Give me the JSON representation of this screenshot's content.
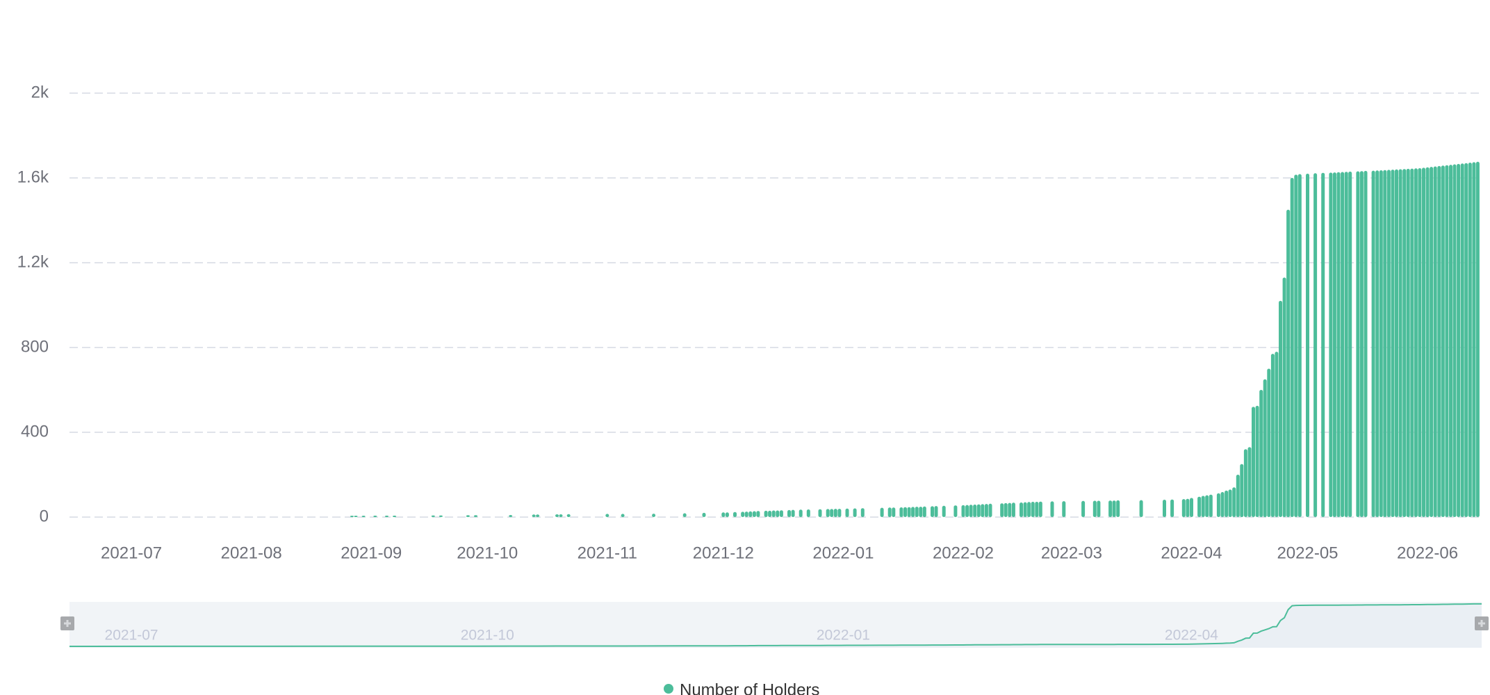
{
  "colors": {
    "series": "#4cbd9a",
    "grid": "#e0e3ea",
    "axis_text": "#6e7079",
    "slider_bg": "#f6f7f9",
    "slider_selection": "#eef2f5",
    "slider_text": "#c3c8d8",
    "handle": "#a7a9ac"
  },
  "chart_data": {
    "type": "bar",
    "title": "",
    "xlabel": "",
    "ylabel": "",
    "ylim": [
      0,
      2000
    ],
    "grid": true,
    "legend_position": "bottom-center",
    "y_ticks": [
      {
        "value": 0,
        "label": "0"
      },
      {
        "value": 400,
        "label": "400"
      },
      {
        "value": 800,
        "label": "800"
      },
      {
        "value": 1200,
        "label": "1.2k"
      },
      {
        "value": 1600,
        "label": "1.6k"
      },
      {
        "value": 2000,
        "label": "2k"
      }
    ],
    "x_range": [
      "2021-06-15",
      "2022-06-15"
    ],
    "x_ticks": [
      {
        "date": "2021-07-01",
        "label": "2021-07"
      },
      {
        "date": "2021-08-01",
        "label": "2021-08"
      },
      {
        "date": "2021-09-01",
        "label": "2021-09"
      },
      {
        "date": "2021-10-01",
        "label": "2021-10"
      },
      {
        "date": "2021-11-01",
        "label": "2021-11"
      },
      {
        "date": "2021-12-01",
        "label": "2021-12"
      },
      {
        "date": "2022-01-01",
        "label": "2022-01"
      },
      {
        "date": "2022-02-01",
        "label": "2022-02"
      },
      {
        "date": "2022-03-01",
        "label": "2022-03"
      },
      {
        "date": "2022-04-01",
        "label": "2022-04"
      },
      {
        "date": "2022-05-01",
        "label": "2022-05"
      },
      {
        "date": "2022-06-01",
        "label": "2022-06"
      }
    ],
    "slider_labels": [
      {
        "date": "2021-07-01",
        "label": "2021-07"
      },
      {
        "date": "2021-10-01",
        "label": "2021-10"
      },
      {
        "date": "2022-01-01",
        "label": "2022-01"
      },
      {
        "date": "2022-04-01",
        "label": "2022-04"
      }
    ],
    "series": [
      {
        "name": "Number of Holders",
        "points": [
          [
            "2021-08-27",
            5
          ],
          [
            "2021-08-28",
            6
          ],
          [
            "2021-08-30",
            6
          ],
          [
            "2021-09-02",
            7
          ],
          [
            "2021-09-05",
            7
          ],
          [
            "2021-09-07",
            7
          ],
          [
            "2021-09-17",
            8
          ],
          [
            "2021-09-19",
            8
          ],
          [
            "2021-09-26",
            9
          ],
          [
            "2021-09-28",
            9
          ],
          [
            "2021-10-07",
            10
          ],
          [
            "2021-10-13",
            12
          ],
          [
            "2021-10-14",
            12
          ],
          [
            "2021-10-19",
            13
          ],
          [
            "2021-10-20",
            13
          ],
          [
            "2021-10-22",
            14
          ],
          [
            "2021-11-01",
            15
          ],
          [
            "2021-11-05",
            15
          ],
          [
            "2021-11-13",
            16
          ],
          [
            "2021-11-21",
            18
          ],
          [
            "2021-11-26",
            20
          ],
          [
            "2021-12-01",
            22
          ],
          [
            "2021-12-02",
            22
          ],
          [
            "2021-12-04",
            24
          ],
          [
            "2021-12-06",
            25
          ],
          [
            "2021-12-07",
            26
          ],
          [
            "2021-12-08",
            27
          ],
          [
            "2021-12-09",
            28
          ],
          [
            "2021-12-10",
            29
          ],
          [
            "2021-12-12",
            30
          ],
          [
            "2021-12-13",
            30
          ],
          [
            "2021-12-14",
            31
          ],
          [
            "2021-12-15",
            31
          ],
          [
            "2021-12-16",
            32
          ],
          [
            "2021-12-18",
            33
          ],
          [
            "2021-12-19",
            34
          ],
          [
            "2021-12-21",
            35
          ],
          [
            "2021-12-23",
            36
          ],
          [
            "2021-12-26",
            37
          ],
          [
            "2021-12-28",
            38
          ],
          [
            "2021-12-29",
            38
          ],
          [
            "2021-12-30",
            39
          ],
          [
            "2021-12-31",
            39
          ],
          [
            "2022-01-02",
            40
          ],
          [
            "2022-01-04",
            41
          ],
          [
            "2022-01-06",
            42
          ],
          [
            "2022-01-11",
            44
          ],
          [
            "2022-01-13",
            45
          ],
          [
            "2022-01-14",
            45
          ],
          [
            "2022-01-16",
            46
          ],
          [
            "2022-01-17",
            47
          ],
          [
            "2022-01-18",
            47
          ],
          [
            "2022-01-19",
            48
          ],
          [
            "2022-01-20",
            49
          ],
          [
            "2022-01-21",
            49
          ],
          [
            "2022-01-22",
            50
          ],
          [
            "2022-01-24",
            51
          ],
          [
            "2022-01-25",
            52
          ],
          [
            "2022-01-27",
            53
          ],
          [
            "2022-01-30",
            55
          ],
          [
            "2022-02-01",
            56
          ],
          [
            "2022-02-02",
            57
          ],
          [
            "2022-02-03",
            58
          ],
          [
            "2022-02-04",
            59
          ],
          [
            "2022-02-05",
            60
          ],
          [
            "2022-02-06",
            61
          ],
          [
            "2022-02-07",
            62
          ],
          [
            "2022-02-08",
            63
          ],
          [
            "2022-02-11",
            65
          ],
          [
            "2022-02-12",
            66
          ],
          [
            "2022-02-13",
            67
          ],
          [
            "2022-02-14",
            68
          ],
          [
            "2022-02-16",
            69
          ],
          [
            "2022-02-17",
            70
          ],
          [
            "2022-02-18",
            71
          ],
          [
            "2022-02-19",
            72
          ],
          [
            "2022-02-20",
            72
          ],
          [
            "2022-02-21",
            73
          ],
          [
            "2022-02-24",
            74
          ],
          [
            "2022-02-27",
            75
          ],
          [
            "2022-03-04",
            76
          ],
          [
            "2022-03-07",
            77
          ],
          [
            "2022-03-08",
            77
          ],
          [
            "2022-03-11",
            78
          ],
          [
            "2022-03-12",
            78
          ],
          [
            "2022-03-13",
            79
          ],
          [
            "2022-03-19",
            80
          ],
          [
            "2022-03-25",
            82
          ],
          [
            "2022-03-27",
            83
          ],
          [
            "2022-03-30",
            85
          ],
          [
            "2022-03-31",
            86
          ],
          [
            "2022-04-01",
            90
          ],
          [
            "2022-04-03",
            96
          ],
          [
            "2022-04-04",
            100
          ],
          [
            "2022-04-05",
            103
          ],
          [
            "2022-04-06",
            106
          ],
          [
            "2022-04-08",
            112
          ],
          [
            "2022-04-09",
            118
          ],
          [
            "2022-04-10",
            125
          ],
          [
            "2022-04-11",
            130
          ],
          [
            "2022-04-12",
            140
          ],
          [
            "2022-04-13",
            200
          ],
          [
            "2022-04-14",
            250
          ],
          [
            "2022-04-15",
            320
          ],
          [
            "2022-04-16",
            330
          ],
          [
            "2022-04-17",
            520
          ],
          [
            "2022-04-18",
            525
          ],
          [
            "2022-04-19",
            600
          ],
          [
            "2022-04-20",
            650
          ],
          [
            "2022-04-21",
            700
          ],
          [
            "2022-04-22",
            770
          ],
          [
            "2022-04-23",
            780
          ],
          [
            "2022-04-24",
            1020
          ],
          [
            "2022-04-25",
            1130
          ],
          [
            "2022-04-26",
            1450
          ],
          [
            "2022-04-27",
            1600
          ],
          [
            "2022-04-28",
            1615
          ],
          [
            "2022-04-29",
            1618
          ],
          [
            "2022-05-01",
            1620
          ],
          [
            "2022-05-03",
            1622
          ],
          [
            "2022-05-05",
            1624
          ],
          [
            "2022-05-07",
            1625
          ],
          [
            "2022-05-08",
            1626
          ],
          [
            "2022-05-09",
            1627
          ],
          [
            "2022-05-10",
            1628
          ],
          [
            "2022-05-11",
            1629
          ],
          [
            "2022-05-12",
            1630
          ],
          [
            "2022-05-14",
            1631
          ],
          [
            "2022-05-15",
            1632
          ],
          [
            "2022-05-16",
            1633
          ],
          [
            "2022-05-18",
            1634
          ],
          [
            "2022-05-19",
            1635
          ],
          [
            "2022-05-20",
            1636
          ],
          [
            "2022-05-21",
            1637
          ],
          [
            "2022-05-22",
            1638
          ],
          [
            "2022-05-23",
            1639
          ],
          [
            "2022-05-24",
            1640
          ],
          [
            "2022-05-25",
            1641
          ],
          [
            "2022-05-26",
            1642
          ],
          [
            "2022-05-27",
            1643
          ],
          [
            "2022-05-28",
            1644
          ],
          [
            "2022-05-29",
            1645
          ],
          [
            "2022-05-30",
            1646
          ],
          [
            "2022-05-31",
            1648
          ],
          [
            "2022-06-01",
            1650
          ],
          [
            "2022-06-02",
            1652
          ],
          [
            "2022-06-03",
            1654
          ],
          [
            "2022-06-04",
            1656
          ],
          [
            "2022-06-05",
            1658
          ],
          [
            "2022-06-06",
            1660
          ],
          [
            "2022-06-07",
            1662
          ],
          [
            "2022-06-08",
            1664
          ],
          [
            "2022-06-09",
            1666
          ],
          [
            "2022-06-10",
            1668
          ],
          [
            "2022-06-11",
            1670
          ],
          [
            "2022-06-12",
            1672
          ],
          [
            "2022-06-13",
            1674
          ],
          [
            "2022-06-14",
            1676
          ]
        ]
      }
    ]
  },
  "legend": {
    "items": [
      {
        "label": "Number of Holders"
      }
    ]
  }
}
